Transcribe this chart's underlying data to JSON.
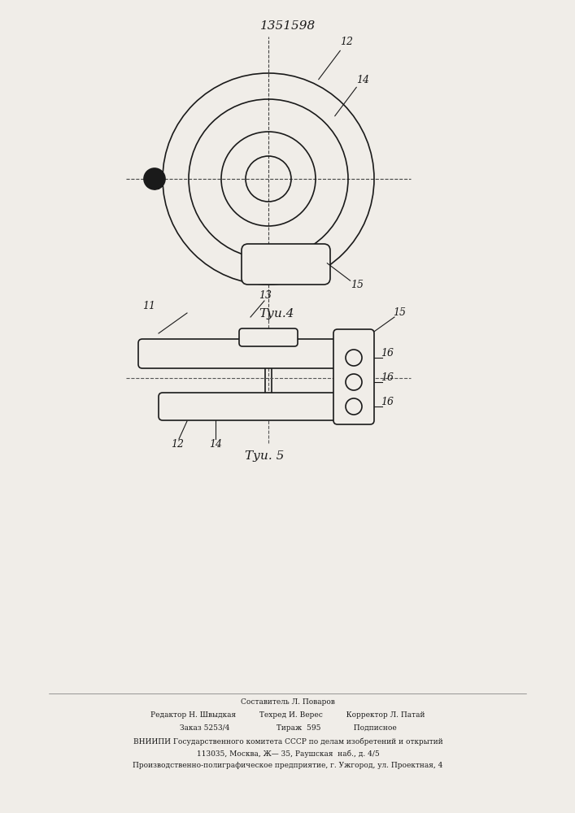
{
  "title": "1351598",
  "fig4_label": "Τуи.4",
  "fig5_label": "Τуи. 5",
  "bg_color": "#f0ede8",
  "line_color": "#1a1a1a",
  "footer_lines": [
    "Составитель Л. Поваров",
    "Редактор Н. Швыдкая          Техред И. Верес          Корректор Л. Патай",
    "Заказ 5253/4                    Тираж  595              Подписное",
    "ВНИИПИ Государственного комитета СССР по делам изобретений и открытий",
    "113035, Москва, Ж— 35, Раушская  наб., д. 4/5",
    "Производственно-полиграфическое предприятие, г. Ужгород, ул. Проектная, 4"
  ]
}
